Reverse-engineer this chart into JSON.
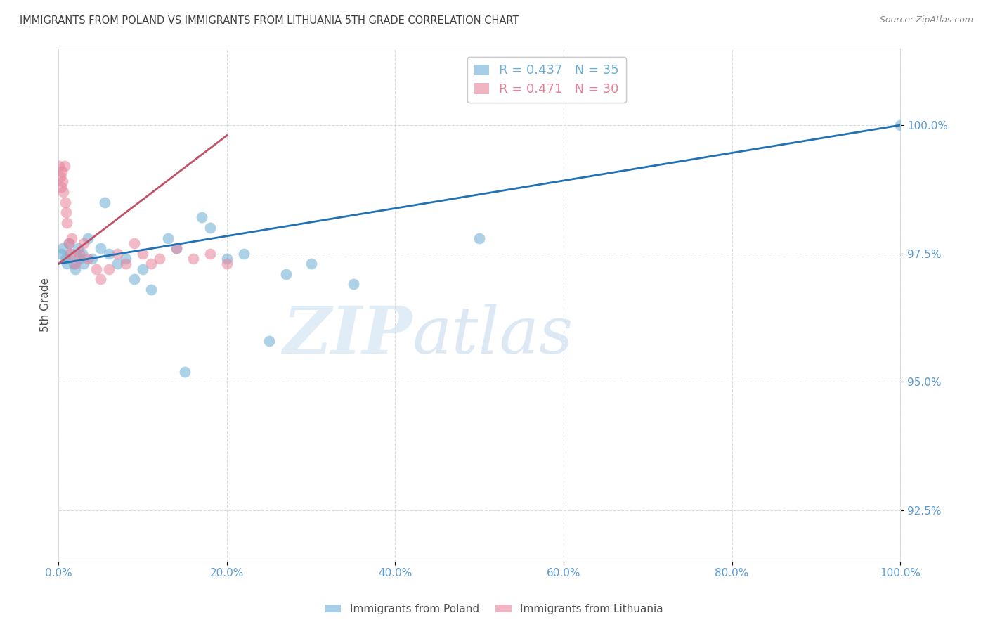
{
  "title": "IMMIGRANTS FROM POLAND VS IMMIGRANTS FROM LITHUANIA 5TH GRADE CORRELATION CHART",
  "source": "Source: ZipAtlas.com",
  "ylabel": "5th Grade",
  "watermark_zip": "ZIP",
  "watermark_atlas": "atlas",
  "xlim": [
    0.0,
    100.0
  ],
  "ylim": [
    91.5,
    101.5
  ],
  "yticks": [
    92.5,
    95.0,
    97.5,
    100.0
  ],
  "ytick_labels": [
    "92.5%",
    "95.0%",
    "97.5%",
    "100.0%"
  ],
  "xticks": [
    0.0,
    20.0,
    40.0,
    60.0,
    80.0,
    100.0
  ],
  "xtick_labels": [
    "0.0%",
    "20.0%",
    "40.0%",
    "60.0%",
    "80.0%",
    "100.0%"
  ],
  "legend_bottom_labels": [
    "Immigrants from Poland",
    "Immigrants from Lithuania"
  ],
  "blue_color": "#6baed6",
  "pink_color": "#e8829a",
  "trend_blue": "#2171b5",
  "trend_pink": "#c0536a",
  "poland_x": [
    0.3,
    0.5,
    0.8,
    1.0,
    1.2,
    1.5,
    1.8,
    2.0,
    2.3,
    2.5,
    2.8,
    3.0,
    3.5,
    4.0,
    5.0,
    5.5,
    6.0,
    7.0,
    8.0,
    9.0,
    10.0,
    11.0,
    13.0,
    14.0,
    15.0,
    17.0,
    18.0,
    20.0,
    22.0,
    25.0,
    27.0,
    30.0,
    35.0,
    50.0,
    100.0
  ],
  "poland_y": [
    97.5,
    97.6,
    97.4,
    97.3,
    97.7,
    97.5,
    97.3,
    97.2,
    97.6,
    97.4,
    97.5,
    97.3,
    97.8,
    97.4,
    97.6,
    98.5,
    97.5,
    97.3,
    97.4,
    97.0,
    97.2,
    96.8,
    97.8,
    97.6,
    95.2,
    98.2,
    98.0,
    97.4,
    97.5,
    95.8,
    97.1,
    97.3,
    96.9,
    97.8,
    100.0
  ],
  "lithuania_x": [
    0.1,
    0.2,
    0.3,
    0.4,
    0.5,
    0.6,
    0.7,
    0.8,
    0.9,
    1.0,
    1.2,
    1.4,
    1.6,
    2.0,
    2.5,
    3.0,
    3.5,
    4.5,
    5.0,
    6.0,
    7.0,
    8.0,
    9.0,
    10.0,
    11.0,
    12.0,
    14.0,
    16.0,
    18.0,
    20.0
  ],
  "lithuania_y": [
    99.2,
    99.0,
    98.8,
    99.1,
    98.9,
    98.7,
    99.2,
    98.5,
    98.3,
    98.1,
    97.7,
    97.5,
    97.8,
    97.3,
    97.5,
    97.7,
    97.4,
    97.2,
    97.0,
    97.2,
    97.5,
    97.3,
    97.7,
    97.5,
    97.3,
    97.4,
    97.6,
    97.4,
    97.5,
    97.3
  ],
  "background_color": "#ffffff",
  "grid_color": "#cccccc",
  "title_color": "#404040",
  "tick_color": "#5b9bd5",
  "ylabel_color": "#505050",
  "source_color": "#888888",
  "blue_trend_start_y": 97.3,
  "blue_trend_end_y": 100.0,
  "pink_trend_start_x": 0.0,
  "pink_trend_start_y": 97.3,
  "pink_trend_end_x": 20.0,
  "pink_trend_end_y": 99.8
}
